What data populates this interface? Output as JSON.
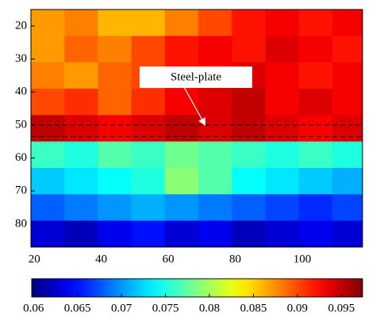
{
  "chart_data": {
    "type": "heatmap",
    "x": [
      24,
      34,
      44,
      54,
      64,
      74,
      84,
      94,
      104,
      114
    ],
    "y": [
      19,
      27,
      35,
      43,
      51,
      59,
      67,
      75,
      83
    ],
    "z": [
      [
        0.087,
        0.088,
        0.086,
        0.086,
        0.088,
        0.09,
        0.092,
        0.093,
        0.092,
        0.093
      ],
      [
        0.087,
        0.089,
        0.088,
        0.09,
        0.092,
        0.093,
        0.092,
        0.094,
        0.093,
        0.092
      ],
      [
        0.088,
        0.087,
        0.089,
        0.09,
        0.092,
        0.093,
        0.094,
        0.093,
        0.092,
        0.093
      ],
      [
        0.09,
        0.091,
        0.089,
        0.091,
        0.093,
        0.094,
        0.095,
        0.093,
        0.094,
        0.093
      ],
      [
        0.095,
        0.094,
        0.093,
        0.094,
        0.095,
        0.094,
        0.095,
        0.094,
        0.093,
        0.094
      ],
      [
        0.076,
        0.075,
        0.077,
        0.076,
        0.078,
        0.077,
        0.076,
        0.075,
        0.076,
        0.075
      ],
      [
        0.072,
        0.073,
        0.074,
        0.075,
        0.079,
        0.077,
        0.074,
        0.073,
        0.072,
        0.071
      ],
      [
        0.068,
        0.069,
        0.07,
        0.071,
        0.07,
        0.069,
        0.068,
        0.067,
        0.066,
        0.067
      ],
      [
        0.063,
        0.062,
        0.064,
        0.065,
        0.063,
        0.064,
        0.062,
        0.063,
        0.064,
        0.063
      ]
    ],
    "xlim": [
      19,
      118
    ],
    "xticks": [
      20,
      40,
      60,
      80,
      100
    ],
    "ylim": [
      15,
      87
    ],
    "yticks": [
      20,
      30,
      40,
      50,
      60,
      70,
      80
    ],
    "clim": [
      0.0598,
      0.0974
    ],
    "cticks": [
      0.06,
      0.065,
      0.07,
      0.075,
      0.08,
      0.085,
      0.09,
      0.095
    ],
    "colormap": "jet",
    "hlines": [
      50,
      53.5
    ],
    "annotation": {
      "text": "Steel-plate",
      "x": 71,
      "y": 50
    }
  }
}
